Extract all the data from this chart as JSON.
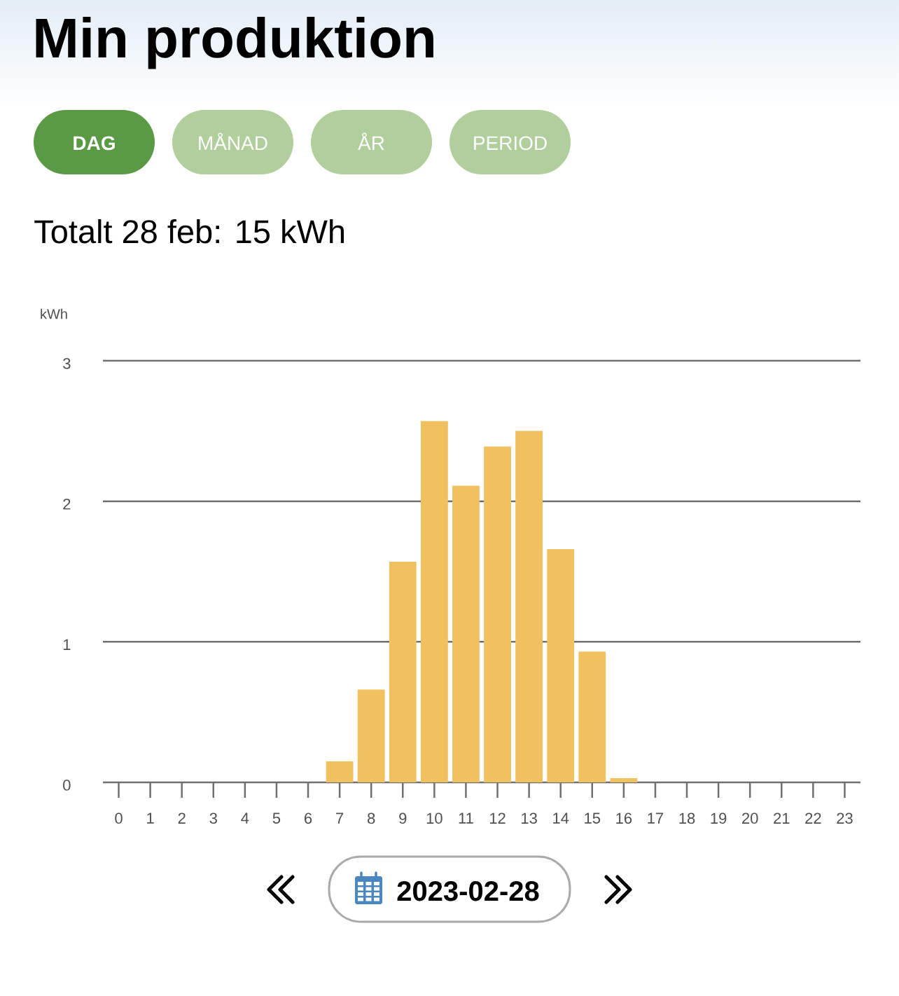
{
  "chart_data": {
    "type": "bar",
    "title": "Min produktion",
    "subtitle": "Totalt 28 feb: 15 kWh",
    "ylabel": "kWh",
    "categories": [
      "0",
      "1",
      "2",
      "3",
      "4",
      "5",
      "6",
      "7",
      "8",
      "9",
      "10",
      "11",
      "12",
      "13",
      "14",
      "15",
      "16",
      "17",
      "18",
      "19",
      "20",
      "21",
      "22",
      "23"
    ],
    "values": [
      0,
      0,
      0,
      0,
      0,
      0,
      0,
      0.15,
      0.66,
      1.57,
      2.57,
      2.11,
      2.39,
      2.5,
      1.66,
      0.93,
      0.03,
      0,
      0,
      0,
      0,
      0,
      0,
      0
    ],
    "color": "#f0c15e",
    "ylim": [
      0,
      3
    ],
    "yticks": [
      0,
      1,
      2,
      3
    ],
    "grid": "y",
    "annotations": [
      "DAG",
      "MÅNAD",
      "ÅR",
      "PERIOD",
      "2023-02-28"
    ]
  }
}
